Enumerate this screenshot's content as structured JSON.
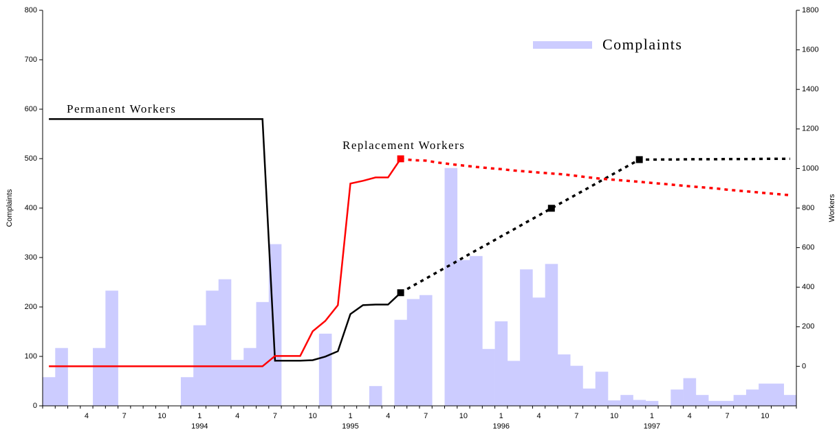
{
  "chart_data": {
    "type": "bar-line",
    "y_label": "Complaints",
    "y2_label": "Workers",
    "categories": [
      null,
      null,
      null,
      "4",
      null,
      null,
      "7",
      null,
      null,
      "10",
      null,
      null,
      "1",
      null,
      null,
      "4",
      null,
      null,
      "7",
      null,
      null,
      "10",
      null,
      null,
      "1",
      null,
      null,
      "4",
      null,
      null,
      "7",
      null,
      null,
      "10",
      null,
      null,
      "1",
      null,
      null,
      "4",
      null,
      null,
      "7",
      null,
      null,
      "10",
      null,
      null,
      "1",
      null,
      null,
      "4",
      null,
      null,
      "7",
      null,
      null,
      "10",
      null,
      null
    ],
    "years": [
      "1994",
      "1995",
      "1996",
      "1997"
    ],
    "ylim": [
      0,
      800
    ],
    "yticks": [
      0,
      100,
      200,
      300,
      400,
      500,
      600,
      700,
      800
    ],
    "y2lim": [
      -200,
      1800
    ],
    "y2ticks": [
      0,
      200,
      400,
      600,
      800,
      1000,
      1200,
      1400,
      1600,
      1800
    ],
    "legend": "top-right",
    "series": [
      {
        "name": "Complaints",
        "type": "bar",
        "color": "#ccccff",
        "values": [
          58,
          117,
          0,
          0,
          117,
          233,
          0,
          0,
          0,
          0,
          0,
          58,
          163,
          233,
          256,
          93,
          117,
          210,
          327,
          0,
          0,
          0,
          146,
          0,
          0,
          0,
          40,
          0,
          174,
          216,
          224,
          0,
          481,
          295,
          303,
          115,
          171,
          91,
          276,
          219,
          287,
          104,
          81,
          35,
          69,
          11,
          22,
          12,
          10,
          0,
          33,
          56,
          22,
          10,
          10,
          22,
          33,
          45,
          45,
          22
        ]
      },
      {
        "label": "Permanent Workers",
        "type": "line",
        "axis": "y2",
        "color": "#000000",
        "dashed_from": 28,
        "markers": [
          28,
          40,
          47
        ],
        "values": [
          1250,
          1250,
          1250,
          1250,
          1250,
          1250,
          1250,
          1250,
          1250,
          1250,
          1250,
          1250,
          1250,
          1250,
          1250,
          1250,
          1250,
          1250,
          28,
          28,
          28,
          31,
          49,
          76,
          264,
          309,
          312,
          312,
          372,
          408,
          443,
          479,
          514,
          550,
          586,
          621,
          657,
          692,
          728,
          763,
          799,
          834,
          869,
          904,
          940,
          975,
          1010,
          1045,
          1045,
          1046,
          1046,
          1047,
          1047,
          1047,
          1048,
          1048,
          1048,
          1049,
          1049,
          1049
        ]
      },
      {
        "label": "Replacement Workers",
        "type": "line",
        "axis": "y2",
        "color": "#ff0000",
        "dashed_from": 28,
        "markers": [
          28
        ],
        "values": [
          0,
          0,
          0,
          0,
          0,
          0,
          0,
          0,
          0,
          0,
          0,
          0,
          0,
          0,
          0,
          0,
          0,
          0,
          52,
          52,
          52,
          177,
          229,
          309,
          924,
          938,
          955,
          955,
          1049,
          1042,
          1040,
          1030,
          1022,
          1015,
          1008,
          1002,
          997,
          990,
          985,
          980,
          975,
          970,
          963,
          955,
          948,
          943,
          938,
          933,
          927,
          922,
          916,
          910,
          905,
          900,
          893,
          887,
          882,
          876,
          871,
          865
        ]
      }
    ]
  }
}
